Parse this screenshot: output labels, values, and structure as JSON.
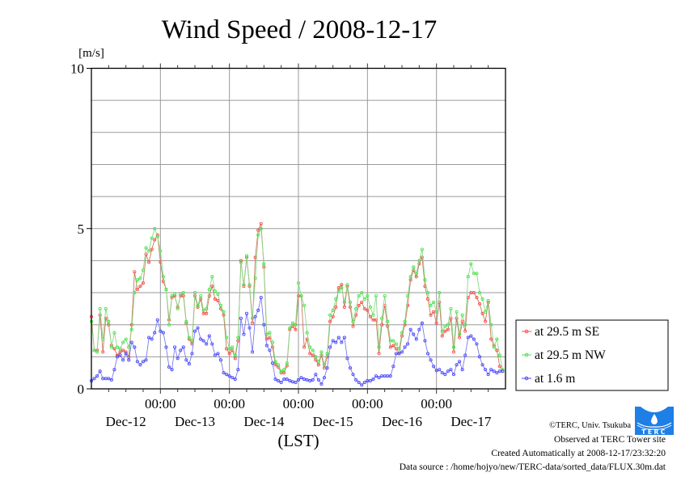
{
  "chart_data": {
    "type": "line",
    "title": "Wind Speed / 2008-12-17",
    "ylabel": "[m/s]",
    "xlabel": "(LST)",
    "ylim": [
      0,
      10
    ],
    "yticks": [
      0,
      5,
      10
    ],
    "ygrid_step": 1,
    "grid": true,
    "x_start": "2008-12-12 00:00",
    "x_end": "2008-12-18 00:00",
    "x_interval_hours": 1,
    "x_minor_tick_hours": 6,
    "x_major_ticks": [
      {
        "time": "00:00",
        "day_hours": 24
      },
      {
        "time": "00:00",
        "day_hours": 48
      },
      {
        "time": "00:00",
        "day_hours": 72
      },
      {
        "time": "00:00",
        "day_hours": 96
      },
      {
        "time": "00:00",
        "day_hours": 120
      }
    ],
    "day_labels": [
      "Dec-12",
      "Dec-13",
      "Dec-14",
      "Dec-15",
      "Dec-16",
      "Dec-17"
    ],
    "legend_position": "right",
    "series": [
      {
        "name": "at 29.5 m SE",
        "marker_color": "#ff4d4d",
        "line_color": "#c8785a",
        "values": [
          2.25,
          1.2,
          1.2,
          2.3,
          1.15,
          2.2,
          2.0,
          1.35,
          1.25,
          1.05,
          1.15,
          1.2,
          1.15,
          1.0,
          2.0,
          3.65,
          3.1,
          3.2,
          3.3,
          4.2,
          3.95,
          4.35,
          4.65,
          4.8,
          3.95,
          3.35,
          3.1,
          2.15,
          2.85,
          2.9,
          2.55,
          2.9,
          2.9,
          2.05,
          1.55,
          1.4,
          2.9,
          2.55,
          2.8,
          2.35,
          2.35,
          2.9,
          3.2,
          2.8,
          2.75,
          2.5,
          2.3,
          1.25,
          1.1,
          1.2,
          0.95,
          1.5,
          4.0,
          3.2,
          4.1,
          3.2,
          2.05,
          4.1,
          4.95,
          5.15,
          3.8,
          1.55,
          1.6,
          1.3,
          0.75,
          0.68,
          0.5,
          0.5,
          0.72,
          1.85,
          1.95,
          1.85,
          2.9,
          2.9,
          1.3,
          1.55,
          1.1,
          1.05,
          0.9,
          0.75,
          1.05,
          0.65,
          1.0,
          2.1,
          2.25,
          2.55,
          3.15,
          3.25,
          2.55,
          3.2,
          2.55,
          1.95,
          2.3,
          2.6,
          2.7,
          2.5,
          2.45,
          2.25,
          2.15,
          2.15,
          1.1,
          2.0,
          2.6,
          1.95,
          1.3,
          1.35,
          1.25,
          1.1,
          1.65,
          2.0,
          2.6,
          3.4,
          3.7,
          3.5,
          3.9,
          4.1,
          3.2,
          2.8,
          2.3,
          2.4,
          2.05,
          2.7,
          1.65,
          1.8,
          1.85,
          2.2,
          1.15,
          2.2,
          1.6,
          2.1,
          1.8,
          2.85,
          3.0,
          3.0,
          2.85,
          2.65,
          2.35,
          2.1,
          2.7,
          1.55,
          1.35,
          1.2,
          0.7,
          0.55
        ]
      },
      {
        "name": "at 29.5 m NW",
        "marker_color": "#45e845",
        "line_color": "#8ad88a",
        "values": [
          2.1,
          1.2,
          1.15,
          2.5,
          1.55,
          2.5,
          2.1,
          1.3,
          1.75,
          1.3,
          1.25,
          1.45,
          1.55,
          1.3,
          1.85,
          3.0,
          3.4,
          3.45,
          3.7,
          4.4,
          4.3,
          4.7,
          5.0,
          4.75,
          4.3,
          3.5,
          3.1,
          2.0,
          2.9,
          2.95,
          2.5,
          2.95,
          3.0,
          2.1,
          1.6,
          1.5,
          3.0,
          2.6,
          2.9,
          2.45,
          2.5,
          3.1,
          3.5,
          3.05,
          2.95,
          2.6,
          2.4,
          1.6,
          1.25,
          1.3,
          1.05,
          1.6,
          3.95,
          3.25,
          4.15,
          3.25,
          2.2,
          3.45,
          4.8,
          5.0,
          3.9,
          1.7,
          1.75,
          1.45,
          0.85,
          0.75,
          0.55,
          0.6,
          0.8,
          1.9,
          2.05,
          2.0,
          3.3,
          2.9,
          2.6,
          1.75,
          1.3,
          1.2,
          1.0,
          0.85,
          1.15,
          0.75,
          1.1,
          2.3,
          2.45,
          2.8,
          3.05,
          3.15,
          2.7,
          3.25,
          2.7,
          2.1,
          2.5,
          2.9,
          3.0,
          2.8,
          2.9,
          2.55,
          2.3,
          2.9,
          1.3,
          2.2,
          2.9,
          2.1,
          1.5,
          1.5,
          1.4,
          1.25,
          1.75,
          2.1,
          2.9,
          3.5,
          3.8,
          3.6,
          4.0,
          4.35,
          3.4,
          3.0,
          2.6,
          2.7,
          2.4,
          3.0,
          1.8,
          1.95,
          2.0,
          2.5,
          1.3,
          2.4,
          1.7,
          2.3,
          2.0,
          3.5,
          3.9,
          3.6,
          3.6,
          3.0,
          2.8,
          2.4,
          2.75,
          2.0,
          1.3,
          1.55,
          1.05,
          0.6
        ]
      },
      {
        "name": "at 1.6 m",
        "marker_color": "#4a4aff",
        "line_color": "#7a7aee",
        "values": [
          0.25,
          0.32,
          0.4,
          0.55,
          0.32,
          0.32,
          0.32,
          0.28,
          0.6,
          1.0,
          1.05,
          0.9,
          1.1,
          0.9,
          1.45,
          1.3,
          0.85,
          0.75,
          0.85,
          0.9,
          1.6,
          1.55,
          1.75,
          2.15,
          1.8,
          1.75,
          1.3,
          0.68,
          0.6,
          1.3,
          0.95,
          1.2,
          1.3,
          0.9,
          0.78,
          1.1,
          1.8,
          1.9,
          1.55,
          1.5,
          1.4,
          1.65,
          1.4,
          1.05,
          1.1,
          0.9,
          0.5,
          0.45,
          0.4,
          0.35,
          0.3,
          0.6,
          2.2,
          1.7,
          2.35,
          1.9,
          1.15,
          2.25,
          2.45,
          2.85,
          2.0,
          1.35,
          1.2,
          0.8,
          0.3,
          0.25,
          0.2,
          0.3,
          0.3,
          0.25,
          0.22,
          0.2,
          0.28,
          0.35,
          0.3,
          0.28,
          0.25,
          0.28,
          0.45,
          0.28,
          0.15,
          0.35,
          0.65,
          1.3,
          1.5,
          1.45,
          1.6,
          1.45,
          1.6,
          0.95,
          0.65,
          0.45,
          0.28,
          0.2,
          0.12,
          0.2,
          0.25,
          0.25,
          0.3,
          0.4,
          0.35,
          0.4,
          0.4,
          0.4,
          0.4,
          0.7,
          1.1,
          1.1,
          1.15,
          1.3,
          1.4,
          1.85,
          1.7,
          1.55,
          1.85,
          2.05,
          1.5,
          1.1,
          0.9,
          0.7,
          0.57,
          0.6,
          0.5,
          0.45,
          0.55,
          0.6,
          0.45,
          0.75,
          0.85,
          0.6,
          1.05,
          1.6,
          1.65,
          1.55,
          1.4,
          1.0,
          0.75,
          0.6,
          0.45,
          0.6,
          0.55,
          0.5,
          0.55,
          0.55
        ]
      }
    ]
  },
  "footer": {
    "copyright": "©TERC, Univ. Tsukuba",
    "observed": "Observed at TERC Tower site",
    "created": "Created Automatically at 2008-12-17/23:32:20",
    "source": "Data source : /home/hojyo/new/TERC-data/sorted_data/FLUX.30m.dat"
  },
  "logo": {
    "text": "TERC",
    "color": "#1e7fe6"
  }
}
